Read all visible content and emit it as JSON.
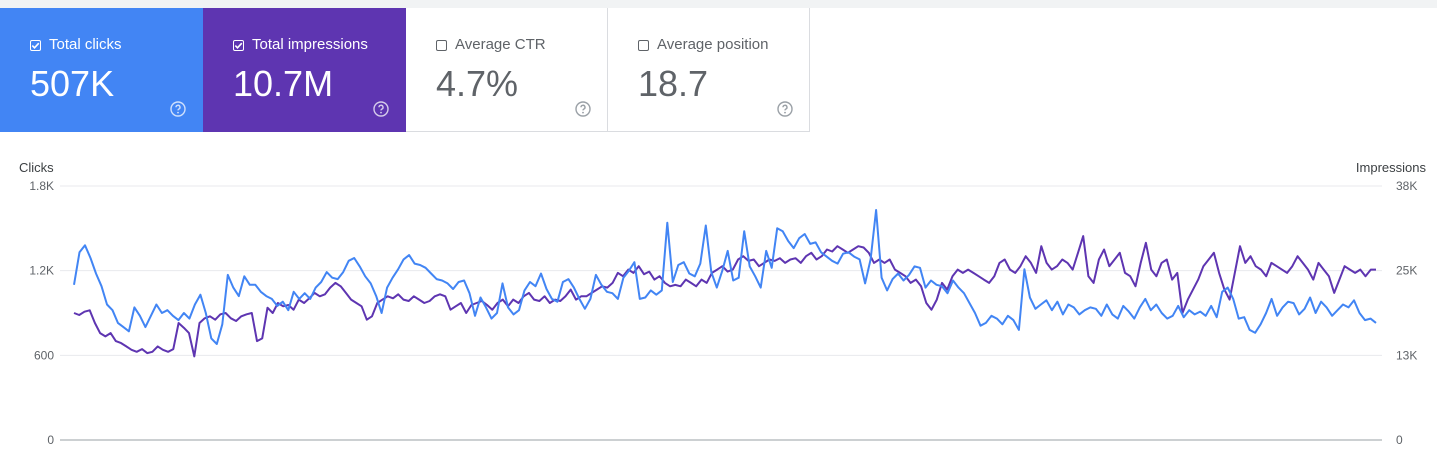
{
  "cards": [
    {
      "label": "Total clicks",
      "value": "507K",
      "checked": true,
      "color": "#4285f4"
    },
    {
      "label": "Total impressions",
      "value": "10.7M",
      "checked": true,
      "color": "#5e35b1"
    },
    {
      "label": "Average CTR",
      "value": "4.7%",
      "checked": false,
      "color": "#ffffff"
    },
    {
      "label": "Average position",
      "value": "18.7",
      "checked": false,
      "color": "#ffffff"
    }
  ],
  "help_icon": "help-circle-icon",
  "chart_data": {
    "type": "line",
    "left_axis": {
      "title": "Clicks",
      "ticks": [
        "1.8K",
        "1.2K",
        "600",
        "0"
      ],
      "range": [
        0,
        1800
      ]
    },
    "right_axis": {
      "title": "Impressions",
      "ticks": [
        "38K",
        "25K",
        "13K",
        "0"
      ],
      "range": [
        0,
        38000
      ]
    },
    "grid": true,
    "series": [
      {
        "color": "#4285f4",
        "axis": "left",
        "values": [
          1100,
          1330,
          1380,
          1290,
          1180,
          1090,
          960,
          920,
          830,
          800,
          770,
          940,
          880,
          800,
          880,
          960,
          900,
          920,
          880,
          850,
          900,
          860,
          960,
          1030,
          900,
          720,
          680,
          820,
          1170,
          1080,
          1020,
          1160,
          1100,
          1100,
          1050,
          1020,
          1000,
          950,
          980,
          920,
          1050,
          1000,
          1040,
          1000,
          1080,
          1120,
          1190,
          1150,
          1140,
          1190,
          1270,
          1290,
          1230,
          1160,
          1110,
          1020,
          900,
          1080,
          1150,
          1210,
          1280,
          1310,
          1250,
          1240,
          1220,
          1180,
          1140,
          1130,
          1110,
          1070,
          1120,
          1130,
          1040,
          880,
          1010,
          940,
          860,
          900,
          1110,
          940,
          890,
          920,
          1060,
          1120,
          1090,
          1180,
          1070,
          1000,
          980,
          1120,
          1140,
          1080,
          1000,
          930,
          1000,
          1170,
          1100,
          1050,
          1040,
          1000,
          1150,
          1200,
          1260,
          1000,
          1010,
          1060,
          1030,
          1060,
          1540,
          1120,
          1240,
          1260,
          1180,
          1160,
          1250,
          1520,
          1190,
          1080,
          1200,
          1340,
          1130,
          1150,
          1480,
          1230,
          1160,
          1080,
          1340,
          1220,
          1500,
          1480,
          1410,
          1360,
          1430,
          1460,
          1390,
          1400,
          1330,
          1300,
          1270,
          1250,
          1320,
          1330,
          1300,
          1280,
          1110,
          1280,
          1630,
          1150,
          1060,
          1140,
          1180,
          1130,
          1170,
          1230,
          1220,
          1080,
          1130,
          1100,
          1090,
          1040,
          1130,
          1080,
          1040,
          970,
          900,
          810,
          830,
          880,
          860,
          820,
          880,
          850,
          780,
          1210,
          1010,
          930,
          960,
          990,
          920,
          980,
          890,
          960,
          940,
          890,
          920,
          940,
          930,
          880,
          960,
          890,
          860,
          950,
          910,
          860,
          940,
          1000,
          920,
          960,
          900,
          860,
          880,
          950,
          870,
          920,
          890,
          910,
          880,
          950,
          870,
          1050,
          1080,
          1000,
          860,
          870,
          780,
          760,
          820,
          900,
          1000,
          880,
          940,
          980,
          970,
          890,
          930,
          1010,
          900,
          980,
          940,
          880,
          920,
          960,
          940,
          990,
          900,
          850,
          860,
          830
        ]
      },
      {
        "color": "#5e35b1",
        "axis": "right",
        "values": [
          19000,
          18700,
          19200,
          19400,
          17500,
          16000,
          15500,
          16000,
          14800,
          14500,
          14000,
          13500,
          13200,
          13600,
          13000,
          13200,
          14000,
          13500,
          13200,
          13600,
          17500,
          16800,
          16000,
          12500,
          17500,
          18200,
          18500,
          18000,
          18800,
          19000,
          18200,
          17800,
          18500,
          18800,
          19000,
          14800,
          15200,
          19800,
          19000,
          20500,
          20000,
          20200,
          19500,
          21000,
          20500,
          21200,
          22000,
          21500,
          21800,
          22800,
          23500,
          23000,
          22000,
          21000,
          20500,
          20000,
          18000,
          18500,
          20500,
          21000,
          21500,
          21200,
          21800,
          21000,
          20800,
          21500,
          21000,
          20500,
          20800,
          21500,
          21800,
          21500,
          19500,
          20000,
          20500,
          19000,
          20200,
          20500,
          20800,
          20200,
          19500,
          20500,
          21000,
          20000,
          21000,
          20500,
          21500,
          22000,
          21000,
          20800,
          21500,
          20500,
          21000,
          20800,
          21500,
          22500,
          21000,
          21500,
          21500,
          22000,
          22500,
          23000,
          22800,
          23500,
          25000,
          24500,
          25500,
          25000,
          26000,
          24800,
          25200,
          24000,
          24500,
          23500,
          23000,
          23200,
          23000,
          24000,
          23500,
          23000,
          24000,
          23500,
          25000,
          25500,
          26000,
          25200,
          25500,
          27000,
          27500,
          26800,
          27000,
          26000,
          26500,
          27000,
          26800,
          27200,
          26500,
          27000,
          27200,
          26500,
          27500,
          28000,
          27000,
          27500,
          28500,
          28200,
          29000,
          28500,
          28000,
          28500,
          29000,
          28800,
          28000,
          26500,
          27000,
          26500,
          27000,
          25500,
          25000,
          24500,
          23500,
          24000,
          23000,
          20500,
          19500,
          21000,
          23500,
          22500,
          24500,
          25500,
          25000,
          25500,
          25000,
          24500,
          24000,
          23500,
          24500,
          26500,
          27000,
          25500,
          25000,
          26000,
          27500,
          26500,
          25000,
          29000,
          26500,
          25500,
          26000,
          27000,
          26500,
          25500,
          28000,
          30500,
          24500,
          23500,
          27000,
          28500,
          26000,
          27000,
          28000,
          25000,
          24500,
          23000,
          26500,
          29500,
          25500,
          24500,
          26500,
          27000,
          24000,
          25000,
          19000,
          21000,
          22500,
          24000,
          26000,
          27000,
          28000,
          25000,
          22500,
          21000,
          25000,
          29000,
          26500,
          27500,
          26000,
          25500,
          24500,
          26500,
          26000,
          25500,
          25000,
          26000,
          27500,
          26500,
          25500,
          24000,
          26500,
          25500,
          24500,
          22000,
          24000,
          26000,
          25500,
          25000,
          25500,
          24500,
          25500,
          25500
        ]
      }
    ]
  }
}
